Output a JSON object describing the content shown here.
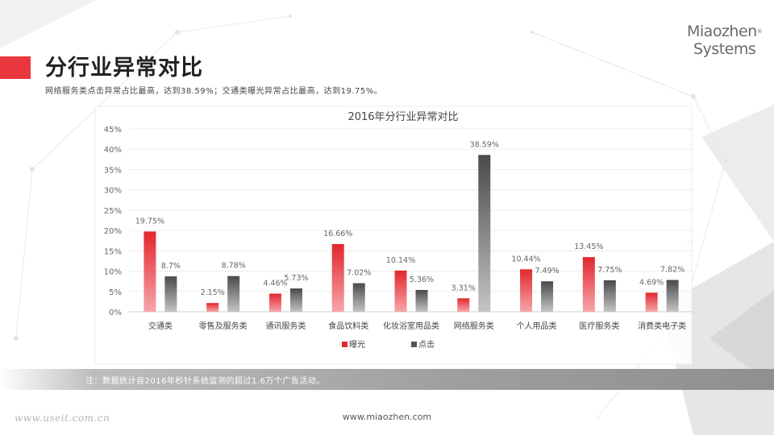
{
  "header": {
    "title": "分行业异常对比",
    "subtitle": "网络服务类点击异常占比最高，达到38.59%；交通类曝光异常占比最高，达到19.75%。"
  },
  "logo": {
    "line1": "Miaozhen",
    "line2": "Systems",
    "reg": "®"
  },
  "footer": {
    "note": "注：数据统计自2016年秒针系统监测的超过1.6万个广告活动。",
    "url": "www.miaozhen.com",
    "watermark": "www.useit.com.cn"
  },
  "colors": {
    "accent": "#e8383d",
    "exposure_top": "#e3262e",
    "exposure_bottom": "#f6a6aa",
    "click_top": "#4a4a4a",
    "click_bottom": "#c4c4c4"
  },
  "chart_data": {
    "type": "bar",
    "title": "2016年分行业异常对比",
    "xlabel": "",
    "ylabel": "",
    "ylim": [
      0,
      45
    ],
    "yticks": [
      0,
      5,
      10,
      15,
      20,
      25,
      30,
      35,
      40,
      45
    ],
    "ytick_format": "percent",
    "grid": true,
    "legend_position": "bottom",
    "categories": [
      "交通类",
      "零售及服务类",
      "通讯服务类",
      "食品饮料类",
      "化妆浴室用品类",
      "网络服务类",
      "个人用品类",
      "医疗服务类",
      "消费类电子类"
    ],
    "series": [
      {
        "name": "曝光",
        "values": [
          19.75,
          2.15,
          4.46,
          16.66,
          10.14,
          3.31,
          10.44,
          13.45,
          4.69
        ],
        "labels": [
          "19.75%",
          "2.15%",
          "4.46%",
          "16.66%",
          "10.14%",
          "3.31%",
          "10.44%",
          "13.45%",
          "4.69%"
        ]
      },
      {
        "name": "点击",
        "values": [
          8.7,
          8.78,
          5.73,
          7.02,
          5.36,
          38.59,
          7.49,
          7.75,
          7.82
        ],
        "labels": [
          "8.7%",
          "8.78%",
          "5.73%",
          "7.02%",
          "5.36%",
          "38.59%",
          "7.49%",
          "7.75%",
          "7.82%"
        ]
      }
    ]
  }
}
